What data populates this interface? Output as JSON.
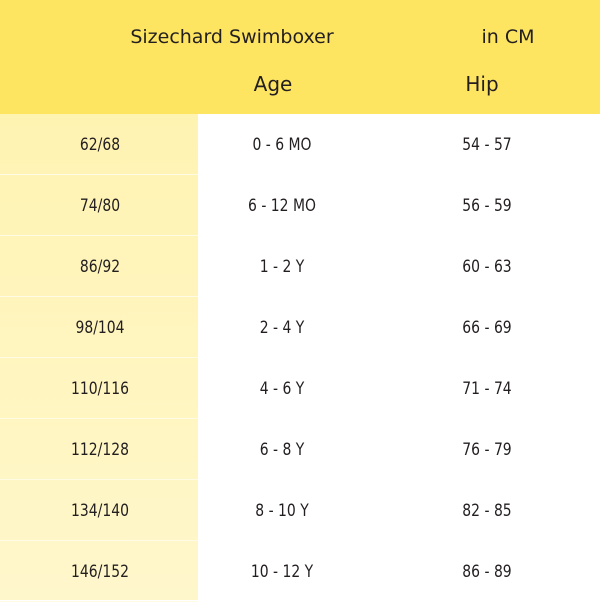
{
  "title": "Sizechard Swimboxer",
  "unit": "in CM",
  "columns": {
    "age": "Age",
    "hip": "Hip"
  },
  "colors": {
    "header": "#fde461",
    "size_column": "#fff3b2"
  },
  "rows": [
    {
      "size": "62/68",
      "age": "0 - 6 MO",
      "hip": "54 - 57"
    },
    {
      "size": "74/80",
      "age": "6 - 12 MO",
      "hip": "56 - 59"
    },
    {
      "size": "86/92",
      "age": "1 - 2  Y",
      "hip": "60 - 63"
    },
    {
      "size": "98/104",
      "age": "2 - 4  Y",
      "hip": "66 - 69"
    },
    {
      "size": "110/116",
      "age": "4 - 6  Y",
      "hip": "71 - 74"
    },
    {
      "size": "112/128",
      "age": "6 - 8  Y",
      "hip": "76 - 79"
    },
    {
      "size": "134/140",
      "age": "8 - 10  Y",
      "hip": "82 - 85"
    },
    {
      "size": "146/152",
      "age": "10 - 12  Y",
      "hip": "86 - 89"
    }
  ]
}
